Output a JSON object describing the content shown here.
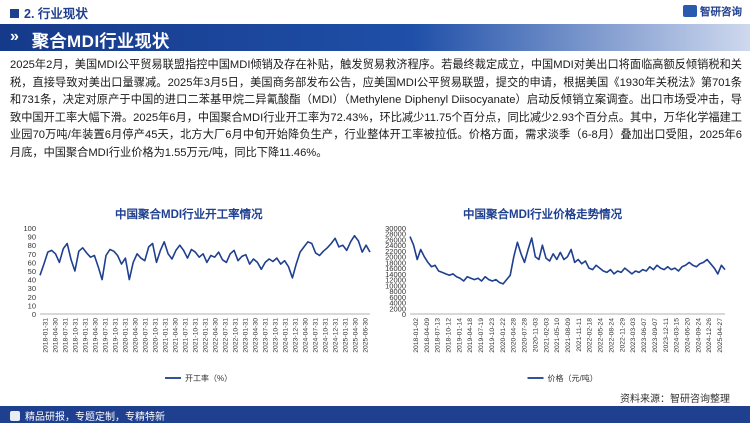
{
  "header": {
    "section": "2. 行业现状",
    "logo": "智研咨询"
  },
  "banner": {
    "title": "聚合MDI行业现状"
  },
  "paragraph": "2025年2月，美国MDI公平贸易联盟指控中国MDI倾销及存在补贴，触发贸易救济程序。若最终裁定成立，中国MDI对美出口将面临高额反倾销税和关税，直接导致对美出口量骤减。2025年3月5日，美国商务部发布公告，应美国MDI公平贸易联盟，提交的申请，根据美国《1930年关税法》第701条和731条，决定对原产于中国的进口二苯基甲烷二异氰酸酯（MDI）（Methylene Diphenyl Diisocyanate）启动反倾销立案调查。出口市场受冲击，导致中国开工率大幅下滑。2025年6月，中国聚合MDI行业开工率为72.43%，环比减少11.75个百分点，同比减少2.93个百分点。其中，万华化学福建工业园70万吨/年装置6月停产45天，北方大厂6月中旬开始降负生产，行业整体开工率被拉低。价格方面，需求淡季（6-8月）叠加出口受阻，2025年6月底，中国聚合MDI行业价格为1.55万元/吨，同比下降11.46%。",
  "chart_data": [
    {
      "type": "line",
      "title": "中国聚合MDI行业开工率情况",
      "legend": "开工率（%）",
      "color": "#1f3f8f",
      "ylim": [
        0,
        100
      ],
      "yticks": [
        0,
        10,
        20,
        30,
        40,
        50,
        60,
        70,
        80,
        90,
        100
      ],
      "xticks": [
        "2018-01-31",
        "2018-04-30",
        "2018-07-31",
        "2018-10-31",
        "2019-01-31",
        "2019-04-30",
        "2019-07-31",
        "2019-10-31",
        "2020-01-31",
        "2020-04-30",
        "2020-07-31",
        "2020-10-31",
        "2021-01-31",
        "2021-04-30",
        "2021-07-31",
        "2021-10-31",
        "2022-01-31",
        "2022-04-30",
        "2022-07-31",
        "2022-10-31",
        "2023-01-31",
        "2023-04-30",
        "2023-07-31",
        "2023-10-31",
        "2024-01-31",
        "2024-04-30",
        "2024-07-31",
        "2024-10-31",
        "2025-01-31",
        "2025-04-30"
      ],
      "xticks_extra": [
        "2023-12-31",
        "2024-12-31",
        "2025-06-30"
      ],
      "values": [
        45,
        58,
        72,
        74,
        70,
        60,
        76,
        82,
        63,
        50,
        73,
        77,
        71,
        66,
        68,
        55,
        40,
        68,
        75,
        73,
        68,
        58,
        65,
        40,
        60,
        70,
        65,
        62,
        78,
        82,
        60,
        74,
        84,
        70,
        64,
        74,
        80,
        74,
        65,
        75,
        72,
        66,
        70,
        60,
        68,
        66,
        72,
        63,
        60,
        70,
        74,
        62,
        67,
        69,
        58,
        64,
        60,
        52,
        60,
        64,
        61,
        65,
        58,
        62,
        55,
        42,
        58,
        72,
        78,
        84,
        82,
        71,
        68,
        73,
        77,
        82,
        88,
        78,
        80,
        74,
        84,
        91,
        85,
        72,
        80,
        72
      ]
    },
    {
      "type": "line",
      "title": "中国聚合MDI行业价格走势情况",
      "legend": "价格（元/吨）",
      "color": "#1f3f8f",
      "ylim": [
        0,
        30000
      ],
      "yticks": [
        0,
        2000,
        4000,
        6000,
        8000,
        10000,
        12000,
        14000,
        16000,
        18000,
        20000,
        22000,
        24000,
        26000,
        28000,
        30000
      ],
      "xticks": [
        "2018-01-02",
        "2018-04-09",
        "2018-07-13",
        "2018-10-12",
        "2019-01-14",
        "2019-04-18",
        "2019-07-19",
        "2019-10-23",
        "2020-01-22",
        "2020-04-28",
        "2020-07-28",
        "2020-11-03",
        "2021-02-03",
        "2021-05-10",
        "2021-08-09",
        "2021-11-11",
        "2022-02-18",
        "2022-05-24",
        "2022-08-24",
        "2022-11-29",
        "2023-03-03",
        "2023-06-07",
        "2023-09-07",
        "2023-12-11",
        "2024-03-15",
        "2024-06-20",
        "2024-09-24",
        "2024-12-26",
        "2025-04-27"
      ],
      "values": [
        27000,
        24000,
        19000,
        22500,
        20000,
        18000,
        16500,
        17000,
        15000,
        14500,
        14000,
        13500,
        14000,
        13000,
        12500,
        11500,
        13000,
        12500,
        12000,
        12500,
        11500,
        13000,
        12000,
        11500,
        12000,
        11000,
        10500,
        12000,
        13500,
        20000,
        25000,
        21000,
        18000,
        22500,
        26500,
        20000,
        19000,
        24000,
        19500,
        18500,
        21000,
        19000,
        21500,
        19000,
        20000,
        22500,
        18000,
        19000,
        17500,
        18500,
        16000,
        15500,
        17000,
        16000,
        15000,
        14500,
        15500,
        14000,
        15000,
        14500,
        16000,
        15000,
        14000,
        15000,
        14500,
        15500,
        15000,
        16500,
        15500,
        17000,
        16000,
        15500,
        16500,
        15500,
        16000,
        15000,
        16500,
        17000,
        18000,
        17000,
        16500,
        17500,
        18000,
        19000,
        17500,
        16000,
        14000,
        17000,
        15500
      ]
    }
  ],
  "source": "资料来源：智研咨询整理",
  "footer": "精品研报，专题定制，专精特新"
}
